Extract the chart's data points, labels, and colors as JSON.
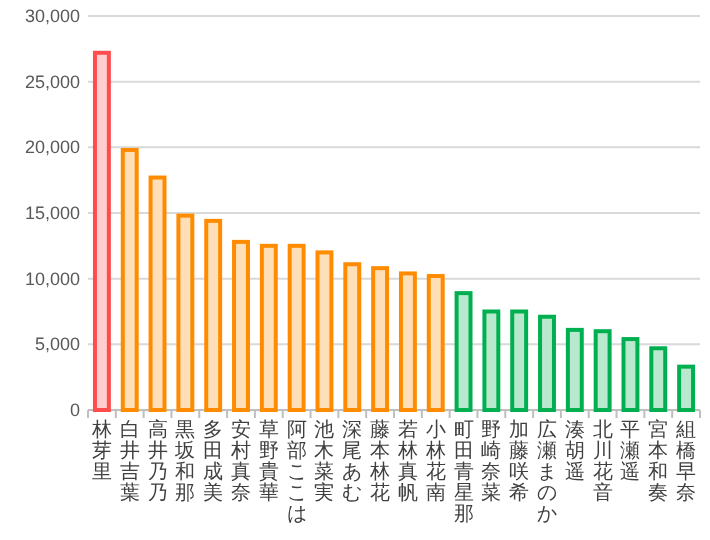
{
  "chart_data": {
    "type": "bar",
    "categories": [
      "林芽里",
      "白井吉葉",
      "高井乃乃",
      "黒坂和那",
      "多田成美",
      "安村真奈",
      "草野貴華",
      "阿部ここは",
      "池木菜実",
      "深尾あむ",
      "藤本林花",
      "若林真帆",
      "小林花南",
      "町田青星那",
      "野崎奈菜",
      "加藤咲希",
      "広瀬まのか",
      "湊胡遥",
      "北川花音",
      "平瀬遥",
      "宮本和奏",
      "組橋早奈"
    ],
    "values": [
      27200,
      19800,
      17700,
      14800,
      14400,
      12800,
      12500,
      12500,
      12000,
      11100,
      10800,
      10400,
      10200,
      8900,
      7500,
      7500,
      7100,
      6100,
      6000,
      5400,
      4700,
      3300
    ],
    "colors": [
      "#ff4d4d",
      "#ff8c00",
      "#ff8c00",
      "#ff8c00",
      "#ff8c00",
      "#ff8c00",
      "#ff8c00",
      "#ff8c00",
      "#ff8c00",
      "#ff8c00",
      "#ff8c00",
      "#ff8c00",
      "#ff8c00",
      "#00b050",
      "#00b050",
      "#00b050",
      "#00b050",
      "#00b050",
      "#00b050",
      "#00b050",
      "#00b050",
      "#00b050"
    ],
    "ylim": [
      0,
      30000
    ],
    "yticks": [
      {
        "value": 0,
        "label": "0"
      },
      {
        "value": 5000,
        "label": "5,000"
      },
      {
        "value": 10000,
        "label": "10,000"
      },
      {
        "value": 15000,
        "label": "15,000"
      },
      {
        "value": 20000,
        "label": "20,000"
      },
      {
        "value": 25000,
        "label": "25,000"
      },
      {
        "value": 30000,
        "label": "30,000"
      }
    ],
    "grid": "y"
  }
}
